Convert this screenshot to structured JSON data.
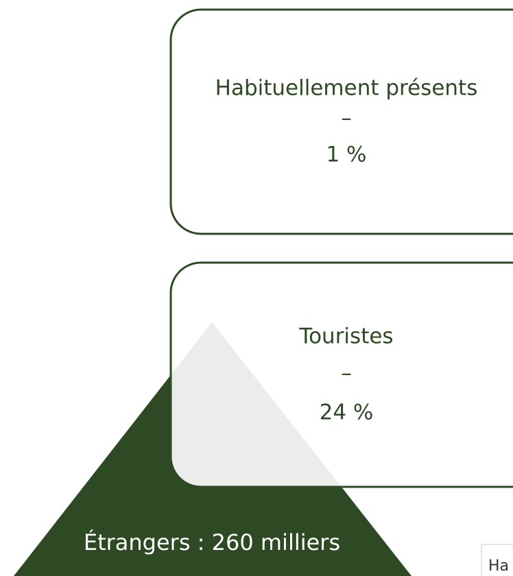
{
  "boxes": [
    {
      "title": "Habituellement présents",
      "separator": "–",
      "value": "1 %"
    },
    {
      "title": "Touristes",
      "separator": "–",
      "value": "24 %"
    }
  ],
  "triangle": {
    "label": "Étrangers : 260 milliers"
  },
  "corner_widget": {
    "text": "Ha"
  }
}
